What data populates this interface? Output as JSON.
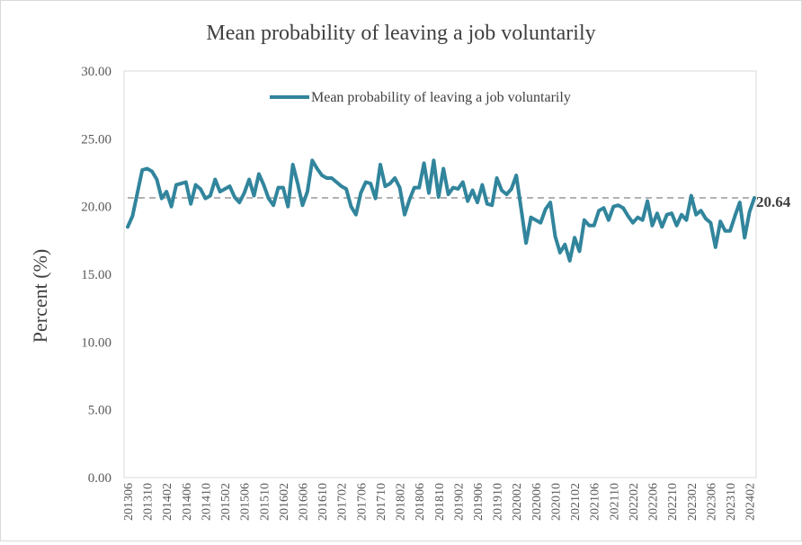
{
  "chart_data": {
    "type": "line",
    "title": "Mean probability  of leaving  a job voluntarily",
    "xlabel": "",
    "ylabel": "Percent (%)",
    "ylim": [
      0,
      30
    ],
    "y_ticks": [
      "0.00",
      "5.00",
      "10.00",
      "15.00",
      "20.00",
      "25.00",
      "30.00"
    ],
    "x_tick_labels": [
      "201306",
      "201310",
      "201402",
      "201406",
      "201410",
      "201502",
      "201506",
      "201510",
      "201602",
      "201606",
      "201610",
      "201702",
      "201706",
      "201710",
      "201802",
      "201806",
      "201810",
      "201902",
      "201906",
      "201910",
      "202002",
      "202006",
      "202010",
      "202102",
      "202106",
      "202110",
      "202202",
      "202206",
      "202210",
      "202302",
      "202306",
      "202310",
      "202402"
    ],
    "grid": false,
    "legend_position": "top-center",
    "series": [
      {
        "name": "Mean probability of leaving a job voluntarily",
        "color": "#31859C",
        "x": [
          "201306",
          "201307",
          "201308",
          "201309",
          "201310",
          "201311",
          "201312",
          "201401",
          "201402",
          "201403",
          "201404",
          "201405",
          "201406",
          "201407",
          "201408",
          "201409",
          "201410",
          "201411",
          "201412",
          "201501",
          "201502",
          "201503",
          "201504",
          "201505",
          "201506",
          "201507",
          "201508",
          "201509",
          "201510",
          "201511",
          "201512",
          "201601",
          "201602",
          "201603",
          "201604",
          "201605",
          "201606",
          "201607",
          "201608",
          "201609",
          "201610",
          "201611",
          "201612",
          "201701",
          "201702",
          "201703",
          "201704",
          "201705",
          "201706",
          "201707",
          "201708",
          "201709",
          "201710",
          "201711",
          "201712",
          "201801",
          "201802",
          "201803",
          "201804",
          "201805",
          "201806",
          "201807",
          "201808",
          "201809",
          "201810",
          "201811",
          "201812",
          "201901",
          "201902",
          "201903",
          "201904",
          "201905",
          "201906",
          "201907",
          "201908",
          "201909",
          "201910",
          "201911",
          "201912",
          "202001",
          "202002",
          "202003",
          "202004",
          "202005",
          "202006",
          "202007",
          "202008",
          "202009",
          "202010",
          "202011",
          "202012",
          "202101",
          "202102",
          "202103",
          "202104",
          "202105",
          "202106",
          "202107",
          "202108",
          "202109",
          "202110",
          "202111",
          "202112",
          "202201",
          "202202",
          "202203",
          "202204",
          "202205",
          "202206",
          "202207",
          "202208",
          "202209",
          "202210",
          "202211",
          "202212",
          "202301",
          "202302",
          "202303",
          "202304",
          "202305",
          "202306",
          "202307",
          "202308",
          "202309",
          "202310",
          "202311",
          "202312",
          "202401",
          "202402",
          "202403"
        ],
        "values": [
          18.5,
          19.3,
          21.0,
          22.7,
          22.8,
          22.6,
          22.0,
          20.6,
          21.1,
          20.0,
          21.6,
          21.7,
          21.8,
          20.2,
          21.6,
          21.3,
          20.6,
          20.8,
          22.0,
          21.1,
          21.3,
          21.5,
          20.7,
          20.3,
          21.0,
          22.0,
          20.8,
          22.4,
          21.6,
          20.6,
          20.1,
          21.4,
          21.4,
          20.0,
          23.1,
          21.7,
          20.1,
          21.1,
          23.4,
          22.8,
          22.3,
          22.1,
          22.1,
          21.8,
          21.5,
          21.3,
          20.0,
          19.4,
          21.0,
          21.8,
          21.7,
          20.6,
          23.1,
          21.5,
          21.7,
          22.1,
          21.4,
          19.4,
          20.5,
          21.4,
          21.4,
          23.2,
          21.0,
          23.4,
          20.7,
          22.8,
          20.9,
          21.4,
          21.3,
          21.8,
          20.4,
          21.2,
          20.3,
          21.6,
          20.2,
          20.1,
          22.1,
          21.2,
          20.9,
          21.3,
          22.3,
          19.8,
          17.3,
          19.2,
          19.0,
          18.8,
          19.8,
          20.3,
          17.8,
          16.6,
          17.2,
          16.0,
          17.7,
          16.7,
          19.0,
          18.6,
          18.6,
          19.7,
          19.9,
          19.0,
          20.0,
          20.1,
          19.9,
          19.3,
          18.8,
          19.2,
          19.0,
          20.4,
          18.6,
          19.5,
          18.5,
          19.4,
          19.5,
          18.6,
          19.4,
          19.0,
          20.8,
          19.4,
          19.7,
          19.1,
          18.8,
          17.0,
          18.9,
          18.2,
          18.2,
          19.3,
          20.3,
          17.7,
          19.6,
          20.64
        ]
      }
    ],
    "reference_line": {
      "value": 20.64,
      "label": "20.64",
      "color": "#999999"
    }
  }
}
